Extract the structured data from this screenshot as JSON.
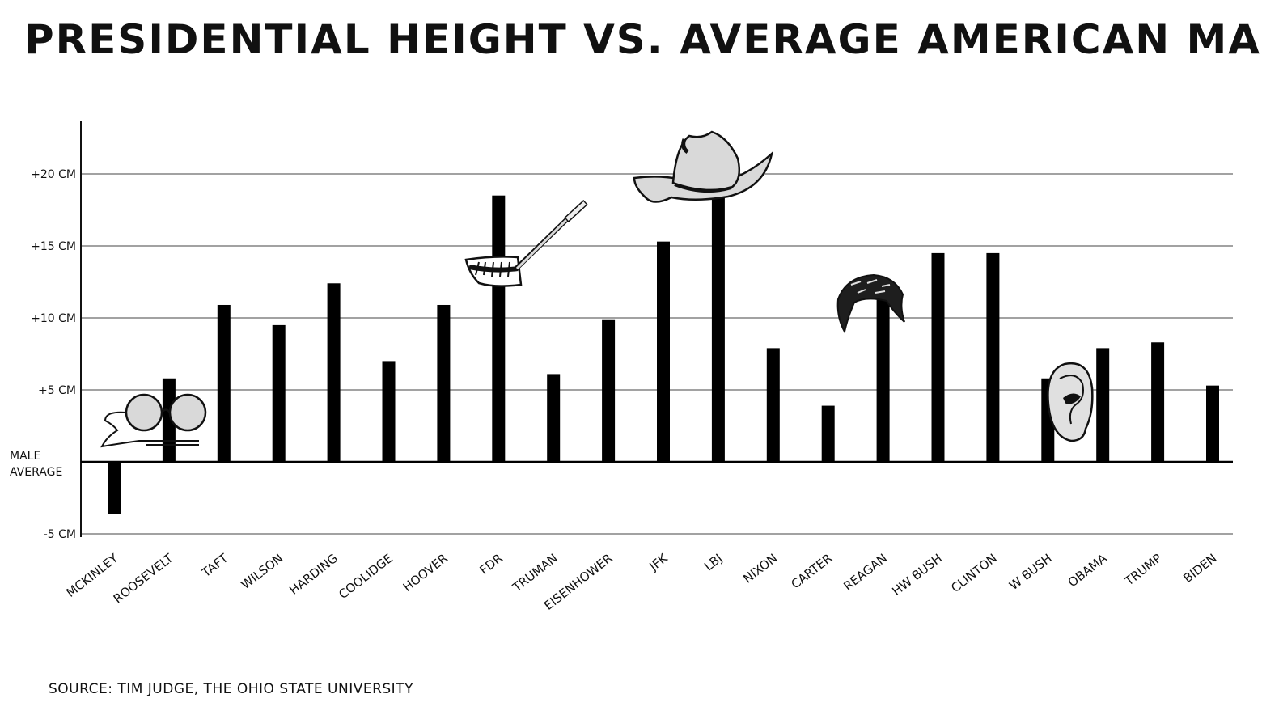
{
  "chart_data": {
    "type": "bar",
    "title": "PRESIDENTIAL HEIGHT VS. AVERAGE AMERICAN MALE",
    "xlabel": "",
    "ylabel": "",
    "baseline_label": [
      "MALE",
      "AVERAGE"
    ],
    "categories": [
      "MCKINLEY",
      "ROOSEVELT",
      "TAFT",
      "WILSON",
      "HARDING",
      "COOLIDGE",
      "HOOVER",
      "FDR",
      "TRUMAN",
      "EISENHOWER",
      "JFK",
      "LBJ",
      "NIXON",
      "CARTER",
      "REAGAN",
      "HW BUSH",
      "CLINTON",
      "W BUSH",
      "OBAMA",
      "TRUMP",
      "BIDEN"
    ],
    "values": [
      -3.6,
      5.8,
      10.9,
      9.5,
      12.4,
      7.0,
      10.9,
      18.5,
      6.1,
      9.9,
      15.3,
      18.4,
      7.9,
      3.9,
      11.9,
      14.5,
      14.5,
      5.8,
      7.9,
      8.3,
      5.3
    ],
    "yticks": [
      {
        "value": 20,
        "label": "+20 CM"
      },
      {
        "value": 15,
        "label": "+15 CM"
      },
      {
        "value": 10,
        "label": "+10 CM"
      },
      {
        "value": 5,
        "label": "+5 CM"
      },
      {
        "value": -5,
        "label": "-5 CM"
      }
    ],
    "ylim": [
      -5,
      23.5
    ],
    "grid": true,
    "legend": "none",
    "annotations": [
      {
        "category": "ROOSEVELT",
        "icon": "pince-nez-glasses-icon"
      },
      {
        "category": "FDR",
        "icon": "cigarette-holder-grin-icon"
      },
      {
        "category": "LBJ",
        "icon": "cowboy-hat-icon"
      },
      {
        "category": "REAGAN",
        "icon": "pompadour-hair-icon"
      },
      {
        "category": "OBAMA",
        "icon": "ear-icon"
      }
    ]
  },
  "source": "SOURCE: TIM JUDGE, THE OHIO STATE UNIVERSITY",
  "colors": {
    "bar": "#000000",
    "grid": "#6a6a6a",
    "baseline": "#000000",
    "icon_fill": "#d9d9d9"
  }
}
